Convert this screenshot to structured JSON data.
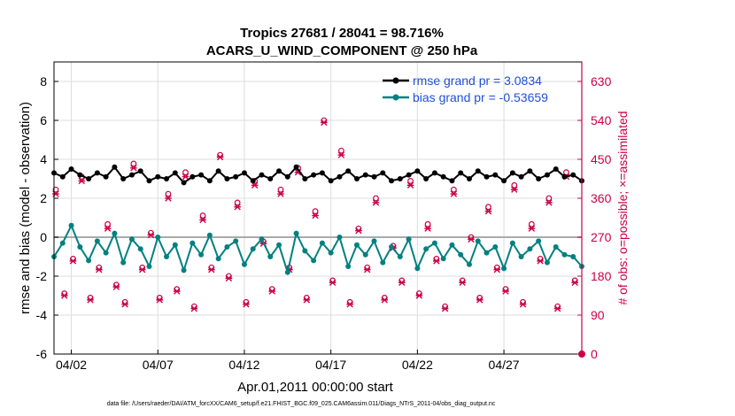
{
  "chart_data": {
    "type": "line",
    "title": "Tropics 27681 / 28041 = 98.716%",
    "subtitle": "ACARS_U_WIND_COMPONENT @ 250 hPa",
    "xlabel": "Apr.01,2011 00:00:00 start",
    "ylabel": "rmse and bias (model - observation)",
    "y2label": "# of obs: o=possible; ×=assimilated",
    "footnote": "data file: /Users/raeder/DAI/ATM_forcXX/CAM6_setup/f.e21.FHIST_BGC.f09_025.CAM6assim.011/Diags_NTrS_2011-04/obs_diag_output.nc",
    "xlim": [
      0.5,
      31
    ],
    "ylim": [
      -6,
      9
    ],
    "y2lim": [
      0,
      675
    ],
    "x_ticks": [
      1.5,
      6.5,
      11.5,
      16.5,
      21.5,
      26.5
    ],
    "x_tick_labels": [
      "04/02",
      "04/07",
      "04/12",
      "04/17",
      "04/22",
      "04/27"
    ],
    "y_ticks": [
      "-6",
      "-4",
      "-2",
      "0",
      "2",
      "4",
      "6",
      "8"
    ],
    "y2_ticks": [
      "0",
      "90",
      "180",
      "270",
      "360",
      "450",
      "540",
      "630"
    ],
    "colors": {
      "rmse": "#000000",
      "bias": "#008080",
      "obs": "#cc0044",
      "legend_text": "#1f4fd6",
      "zero_line": "#aaaaaa",
      "grid": "#dddddd"
    },
    "series": [
      {
        "name": "rmse grand pr = 3.0834",
        "x": [
          0.5,
          1.0,
          1.5,
          2.0,
          2.5,
          3.0,
          3.5,
          4.0,
          4.5,
          5.0,
          5.5,
          6.0,
          6.5,
          7.0,
          7.5,
          8.0,
          8.5,
          9.0,
          9.5,
          10.0,
          10.5,
          11.0,
          11.5,
          12.0,
          12.5,
          13.0,
          13.5,
          14.0,
          14.5,
          15.0,
          15.5,
          16.0,
          16.5,
          17.0,
          17.5,
          18.0,
          18.5,
          19.0,
          19.5,
          20.0,
          20.5,
          21.0,
          21.5,
          22.0,
          22.5,
          23.0,
          23.5,
          24.0,
          24.5,
          25.0,
          25.5,
          26.0,
          26.5,
          27.0,
          27.5,
          28.0,
          28.5,
          29.0,
          29.5,
          30.0,
          30.5,
          31.0
        ],
        "values": [
          3.3,
          3.1,
          3.5,
          3.2,
          3.0,
          3.3,
          3.1,
          3.6,
          3.0,
          3.2,
          3.4,
          2.9,
          3.1,
          3.0,
          3.3,
          2.8,
          3.1,
          3.2,
          2.9,
          3.4,
          3.0,
          3.1,
          3.3,
          2.9,
          3.2,
          3.0,
          3.4,
          3.1,
          3.6,
          3.0,
          3.2,
          3.3,
          2.9,
          3.1,
          3.4,
          3.0,
          3.2,
          3.1,
          3.3,
          2.9,
          3.0,
          3.2,
          3.4,
          3.0,
          3.3,
          3.1,
          2.9,
          3.3,
          3.0,
          3.4,
          3.1,
          3.2,
          2.9,
          3.3,
          3.1,
          3.4,
          3.0,
          3.2,
          3.5,
          3.1,
          3.2,
          2.9
        ]
      },
      {
        "name": "bias grand pr = -0.53659",
        "x": [
          0.5,
          1.0,
          1.5,
          2.0,
          2.5,
          3.0,
          3.5,
          4.0,
          4.5,
          5.0,
          5.5,
          6.0,
          6.5,
          7.0,
          7.5,
          8.0,
          8.5,
          9.0,
          9.5,
          10.0,
          10.5,
          11.0,
          11.5,
          12.0,
          12.5,
          13.0,
          13.5,
          14.0,
          14.5,
          15.0,
          15.5,
          16.0,
          16.5,
          17.0,
          17.5,
          18.0,
          18.5,
          19.0,
          19.5,
          20.0,
          20.5,
          21.0,
          21.5,
          22.0,
          22.5,
          23.0,
          23.5,
          24.0,
          24.5,
          25.0,
          25.5,
          26.0,
          26.5,
          27.0,
          27.5,
          28.0,
          28.5,
          29.0,
          29.5,
          30.0,
          30.5,
          31.0
        ],
        "values": [
          -1.0,
          -0.3,
          0.6,
          -0.5,
          -1.2,
          -0.2,
          -0.8,
          0.2,
          -1.3,
          -0.1,
          -0.6,
          -1.5,
          0.0,
          -1.0,
          -0.4,
          -1.7,
          -0.3,
          -0.9,
          0.1,
          -1.1,
          -0.5,
          -0.2,
          -1.4,
          -0.6,
          -0.1,
          -1.0,
          -0.4,
          -1.8,
          0.2,
          -0.7,
          -1.2,
          -0.3,
          -0.8,
          0.0,
          -1.5,
          -0.4,
          -0.9,
          -0.2,
          -1.3,
          -0.5,
          -1.0,
          -0.1,
          -1.6,
          -0.6,
          -0.3,
          -1.1,
          -0.4,
          -0.9,
          -1.4,
          -0.2,
          -0.8,
          -0.5,
          -1.6,
          -0.3,
          -1.0,
          -0.6,
          -0.2,
          -1.3,
          -0.5,
          -0.9,
          -1.0,
          -1.5
        ]
      }
    ],
    "obs_possible": {
      "x": [
        0.6,
        1.1,
        1.6,
        2.1,
        2.6,
        3.1,
        3.6,
        4.1,
        4.6,
        5.1,
        5.6,
        6.1,
        6.6,
        7.1,
        7.6,
        8.1,
        8.6,
        9.1,
        9.6,
        10.1,
        10.6,
        11.1,
        11.6,
        12.1,
        12.6,
        13.1,
        13.6,
        14.1,
        14.6,
        15.1,
        15.6,
        16.1,
        16.6,
        17.1,
        17.6,
        18.1,
        18.6,
        19.1,
        19.6,
        20.1,
        20.6,
        21.1,
        21.6,
        22.1,
        22.6,
        23.1,
        23.6,
        24.1,
        24.6,
        25.1,
        25.6,
        26.1,
        26.6,
        27.1,
        27.6,
        28.1,
        28.6,
        29.1,
        29.6,
        30.1,
        30.6
      ],
      "values": [
        380,
        140,
        220,
        410,
        130,
        200,
        300,
        160,
        120,
        440,
        200,
        280,
        130,
        370,
        150,
        420,
        110,
        320,
        200,
        460,
        180,
        350,
        120,
        400,
        260,
        150,
        380,
        200,
        430,
        130,
        330,
        540,
        170,
        470,
        120,
        290,
        200,
        360,
        130,
        250,
        170,
        400,
        140,
        300,
        220,
        110,
        380,
        170,
        270,
        130,
        340,
        200,
        150,
        390,
        120,
        300,
        220,
        360,
        110,
        420,
        170
      ]
    },
    "obs_assimilated": {
      "x": [
        0.6,
        1.1,
        1.6,
        2.1,
        2.6,
        3.1,
        3.6,
        4.1,
        4.6,
        5.1,
        5.6,
        6.1,
        6.6,
        7.1,
        7.6,
        8.1,
        8.6,
        9.1,
        9.6,
        10.1,
        10.6,
        11.1,
        11.6,
        12.1,
        12.6,
        13.1,
        13.6,
        14.1,
        14.6,
        15.1,
        15.6,
        16.1,
        16.6,
        17.1,
        17.6,
        18.1,
        18.6,
        19.1,
        19.6,
        20.1,
        20.6,
        21.1,
        21.6,
        22.1,
        22.6,
        23.1,
        23.6,
        24.1,
        24.6,
        25.1,
        25.6,
        26.1,
        26.6,
        27.1,
        27.6,
        28.1,
        28.6,
        29.1,
        29.6,
        30.1,
        30.6
      ],
      "values": [
        370,
        135,
        215,
        400,
        125,
        195,
        290,
        155,
        115,
        430,
        195,
        275,
        125,
        360,
        145,
        410,
        105,
        310,
        195,
        455,
        175,
        340,
        115,
        390,
        255,
        145,
        370,
        195,
        420,
        125,
        320,
        535,
        165,
        460,
        115,
        285,
        195,
        350,
        125,
        245,
        165,
        390,
        135,
        290,
        215,
        105,
        370,
        165,
        265,
        125,
        330,
        195,
        145,
        380,
        115,
        290,
        215,
        350,
        105,
        410,
        165
      ]
    },
    "last_possible": {
      "x": 31,
      "value": 0
    }
  }
}
